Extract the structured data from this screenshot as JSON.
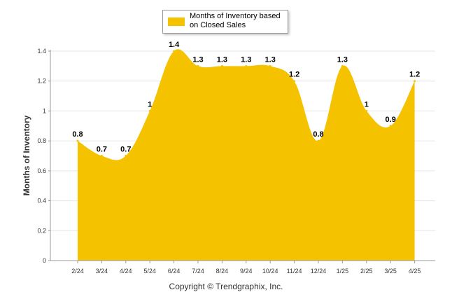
{
  "chart_data": {
    "type": "area",
    "categories": [
      "2/24",
      "3/24",
      "4/24",
      "5/24",
      "6/24",
      "7/24",
      "8/24",
      "9/24",
      "10/24",
      "11/24",
      "12/24",
      "1/25",
      "2/25",
      "3/25",
      "4/25"
    ],
    "series": [
      {
        "name": "Months of Inventory based on Closed Sales",
        "values": [
          0.8,
          0.7,
          0.7,
          1,
          1.4,
          1.3,
          1.3,
          1.3,
          1.3,
          1.2,
          0.8,
          1.3,
          1,
          0.9,
          1.2
        ],
        "labels": [
          "0.8",
          "0.7",
          "0.7",
          "1",
          "1.4",
          "1.3",
          "1.3",
          "1.3",
          "1.3",
          "1.2",
          "0.8",
          "1.3",
          "1",
          "0.9",
          "1.2"
        ]
      }
    ],
    "ylabel": "Months of Inventory",
    "yticks": [
      "0",
      "0.2",
      "0.4",
      "0.6",
      "0.8",
      "1",
      "1.2",
      "1.4"
    ],
    "ylim": [
      0,
      1.4
    ],
    "grid": true,
    "legend_position": "top-center"
  },
  "colors": {
    "area": "#F5C200",
    "grid": "#e6e6e6",
    "axis": "#999999"
  },
  "legend": {
    "label": "Months of Inventory based on Closed Sales"
  },
  "footer": {
    "copyright": "Copyright © Trendgraphix, Inc."
  }
}
